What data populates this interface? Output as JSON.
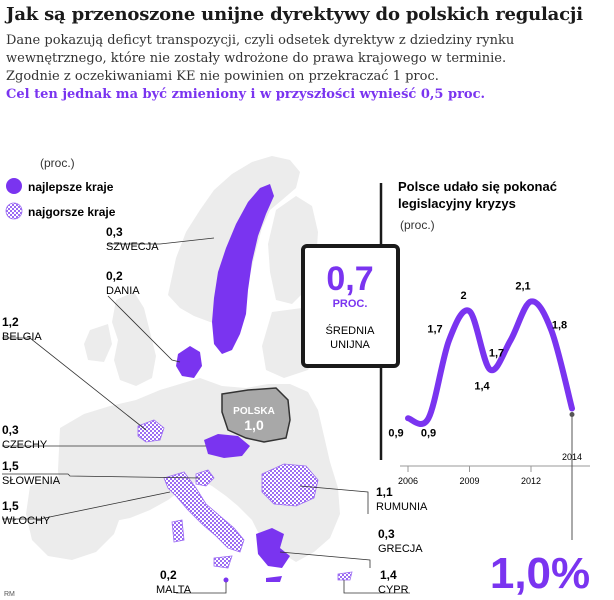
{
  "title": "Jak są przenoszone unijne dyrektywy do polskich regulacji",
  "lead": [
    "Dane pokazują deficyt transpozycji, czyli odsetek dyrektyw z dziedziny rynku",
    "wewnętrznego, które nie zostały wdrożone do prawa krajowego w terminie.",
    "Zgodnie z oczekiwaniami KE nie powinien on przekraczać 1 proc."
  ],
  "lead_accent": "Cel ten jednak ma być zmieniony i w przyszłości wynieść 0,5 proc.",
  "colors": {
    "accent": "#7a34f0",
    "best_fill": "#7a34f0",
    "worst_pattern": "#9c6cf3",
    "poland_fill": "#a8a8a8",
    "map_fill": "#ececec"
  },
  "map": {
    "unit": "(proc.)",
    "legend": {
      "best": "najlepsze kraje",
      "worst": "najgorsze kraje"
    },
    "poland": {
      "name": "POLSKA",
      "value": "1,0"
    },
    "countries": [
      {
        "name": "SZWECJA",
        "value": "0,3",
        "group": "best"
      },
      {
        "name": "DANIA",
        "value": "0,2",
        "group": "best"
      },
      {
        "name": "BELGIA",
        "value": "1,2",
        "group": "worst"
      },
      {
        "name": "CZECHY",
        "value": "0,3",
        "group": "best"
      },
      {
        "name": "SŁOWENIA",
        "value": "1,5",
        "group": "worst"
      },
      {
        "name": "WŁOCHY",
        "value": "1,5",
        "group": "worst"
      },
      {
        "name": "RUMUNIA",
        "value": "1,1",
        "group": "worst"
      },
      {
        "name": "GRECJA",
        "value": "0,3",
        "group": "best"
      },
      {
        "name": "MALTA",
        "value": "0,2",
        "group": "best"
      },
      {
        "name": "CYPR",
        "value": "1,4",
        "group": "worst"
      }
    ]
  },
  "eu_average": {
    "value": "0,7",
    "unit": "PROC.",
    "label_line1": "ŚREDNIA",
    "label_line2": "UNIJNA"
  },
  "chart_data": {
    "type": "line",
    "title": "Polsce udało się pokonać legislacyjny kryzys",
    "unit": "(proc.)",
    "x": [
      2006,
      2007,
      2008,
      2009,
      2010,
      2011,
      2012,
      2013,
      2014
    ],
    "values": [
      0.9,
      0.9,
      1.7,
      2.0,
      1.4,
      1.7,
      2.1,
      1.8,
      1.0
    ],
    "data_labels": [
      "0,9",
      "0,9",
      "1,7",
      "2",
      "1,4",
      "1,7",
      "2,1",
      "1,8",
      ""
    ],
    "x_tick_labels": [
      "2006",
      "2009",
      "2012",
      "2014"
    ],
    "ylim": [
      0.8,
      2.3
    ],
    "final_value_label": "1,0%"
  },
  "source": "RM"
}
